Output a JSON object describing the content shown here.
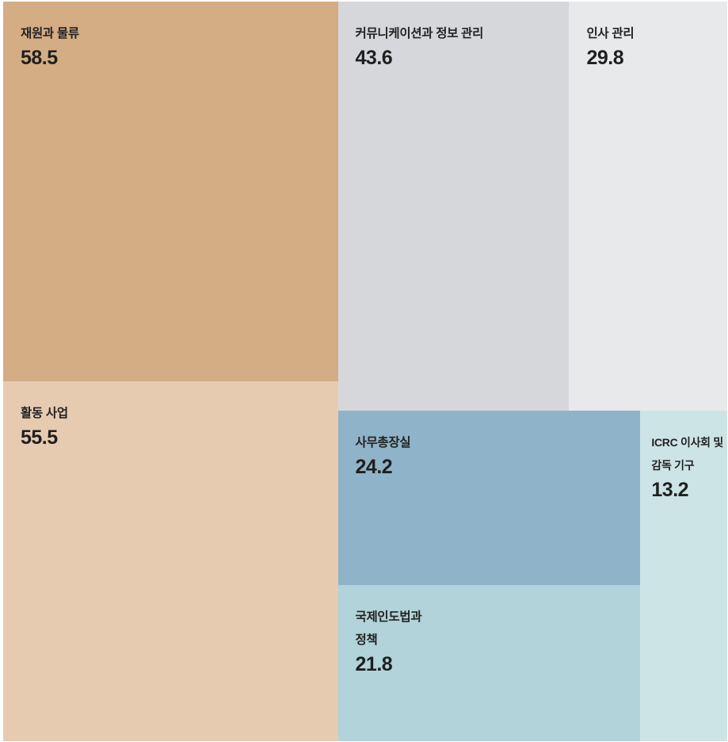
{
  "chart_data": {
    "type": "treemap",
    "items": [
      {
        "label": "재원과 물류",
        "value": 58.5,
        "value_label": "58.5",
        "color": "#d4ad84"
      },
      {
        "label": "활동 사업",
        "value": 55.5,
        "value_label": "55.5",
        "color": "#e7cbb1"
      },
      {
        "label": "커뮤니케이션과 정보 관리",
        "value": 43.6,
        "value_label": "43.6",
        "color": "#d6d7da"
      },
      {
        "label": "인사 관리",
        "value": 29.8,
        "value_label": "29.8",
        "color": "#e8e9eb"
      },
      {
        "label": "사무총장실",
        "value": 24.2,
        "value_label": "24.2",
        "color": "#8fb3c8"
      },
      {
        "label": "국제인도법과\n정책",
        "value": 21.8,
        "value_label": "21.8",
        "color": "#b1d3d9"
      },
      {
        "label": "ICRC 이사회 및\n감독 기구",
        "value": 13.2,
        "value_label": "13.2",
        "color": "#cde4e6"
      }
    ]
  }
}
